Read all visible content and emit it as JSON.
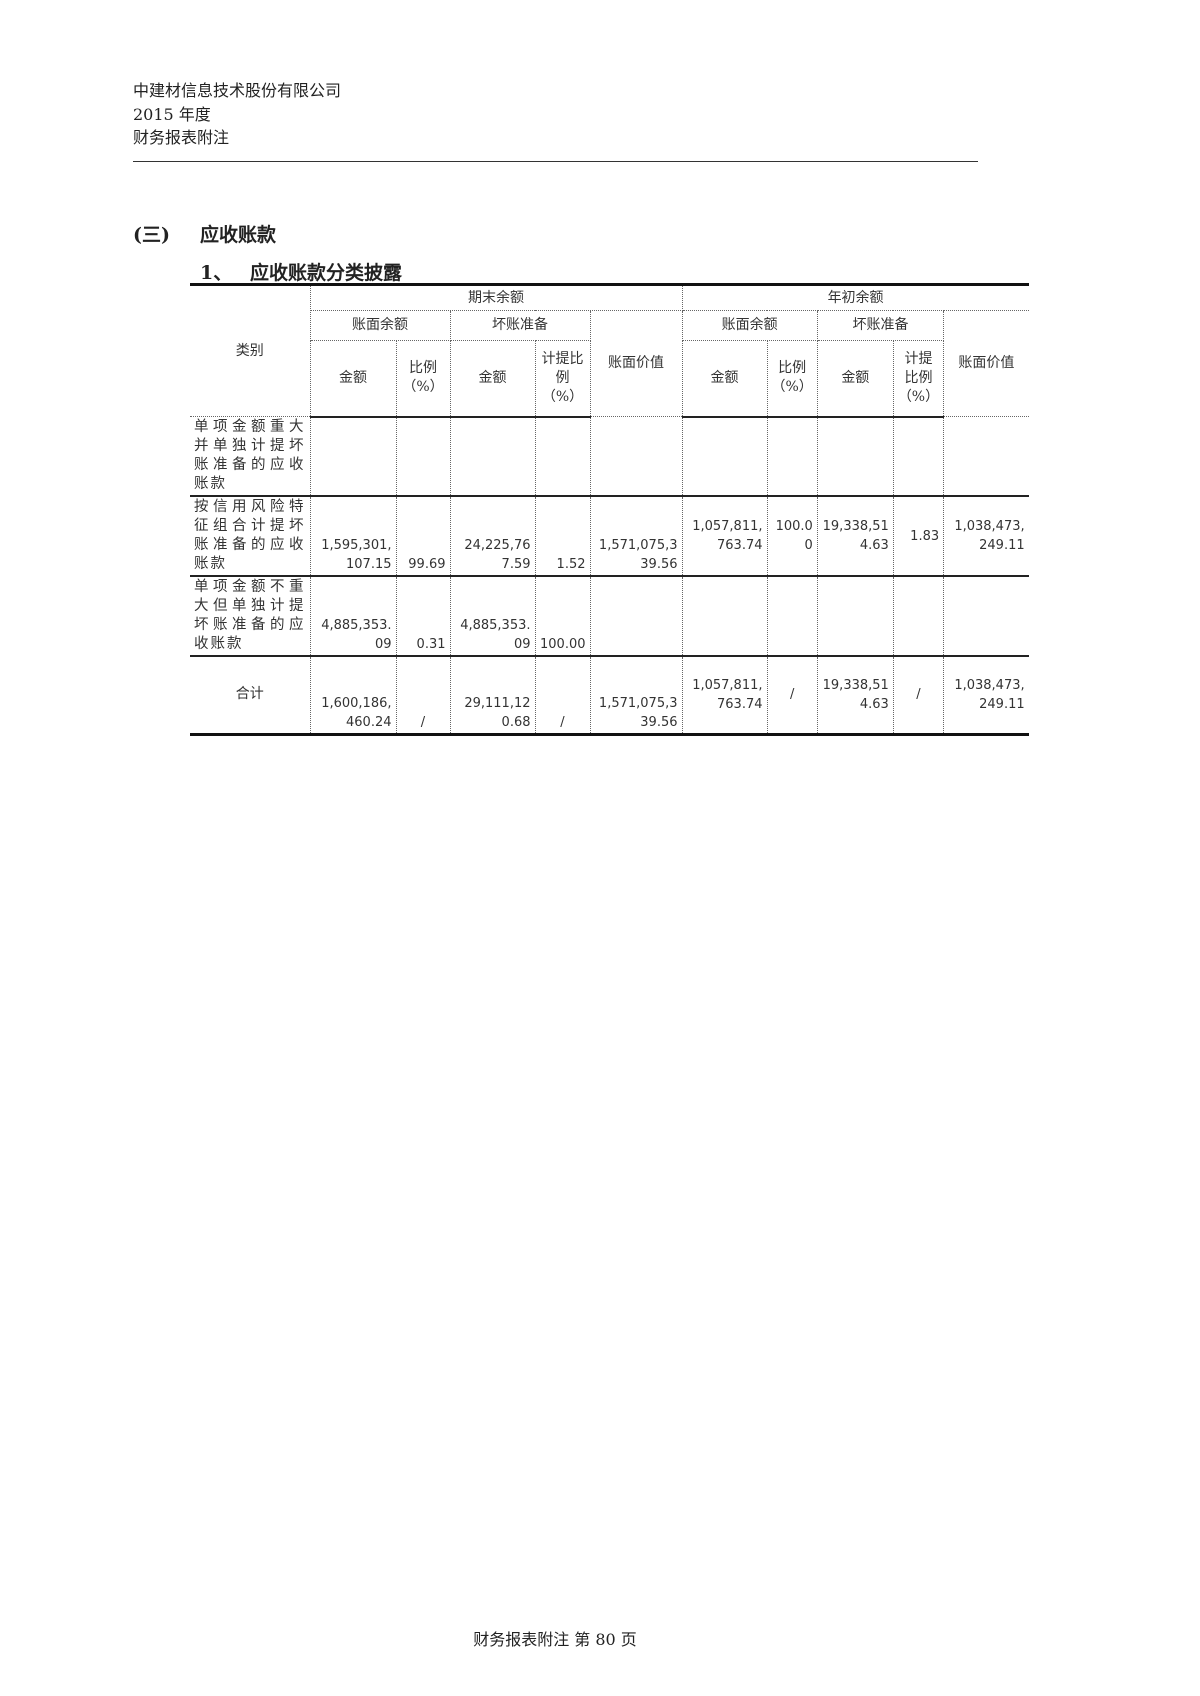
{
  "header": {
    "company": "中建材信息技术股份有限公司",
    "year": "2015 年度",
    "doc": "财务报表附注"
  },
  "section": {
    "num": "(三)",
    "title": "应收账款"
  },
  "subsection": {
    "num": "1、",
    "title": "应收账款分类披露"
  },
  "table": {
    "h_category": "类别",
    "h_end": "期末余额",
    "h_begin": "年初余额",
    "h_book": "账面余额",
    "h_bad": "坏账准备",
    "h_value": "账面价值",
    "h_amount": "金额",
    "h_ratio": "比例（%）",
    "h_prov": "计提比例（%）",
    "rows": [
      {
        "cat": "单项金额重大并单独计提坏账准备的应收账款",
        "c": [
          "",
          "",
          "",
          "",
          "",
          "",
          "",
          "",
          "",
          ""
        ]
      },
      {
        "cat": "按信用风险特征组合计提坏账准备的应收账款",
        "c": [
          "1,595,301,107.15",
          "99.69",
          "24,225,767.59",
          "1.52",
          "1,571,075,339.56",
          "1,057,811,763.74",
          "100.00",
          "19,338,514.63",
          "1.83",
          "1,038,473,249.11"
        ]
      },
      {
        "cat": "单项金额不重大但单独计提坏账准备的应收账款",
        "c": [
          "4,885,353.09",
          "0.31",
          "4,885,353.09",
          "100.00",
          "",
          "",
          "",
          "",
          "",
          ""
        ]
      },
      {
        "cat": "合计",
        "c": [
          "1,600,186,460.24",
          "/",
          "29,111,120.68",
          "/",
          "1,571,075,339.56",
          "1,057,811,763.74",
          "/",
          "19,338,514.63",
          "/",
          "1,038,473,249.11"
        ]
      }
    ]
  },
  "footer": "财务报表附注 第 80 页"
}
